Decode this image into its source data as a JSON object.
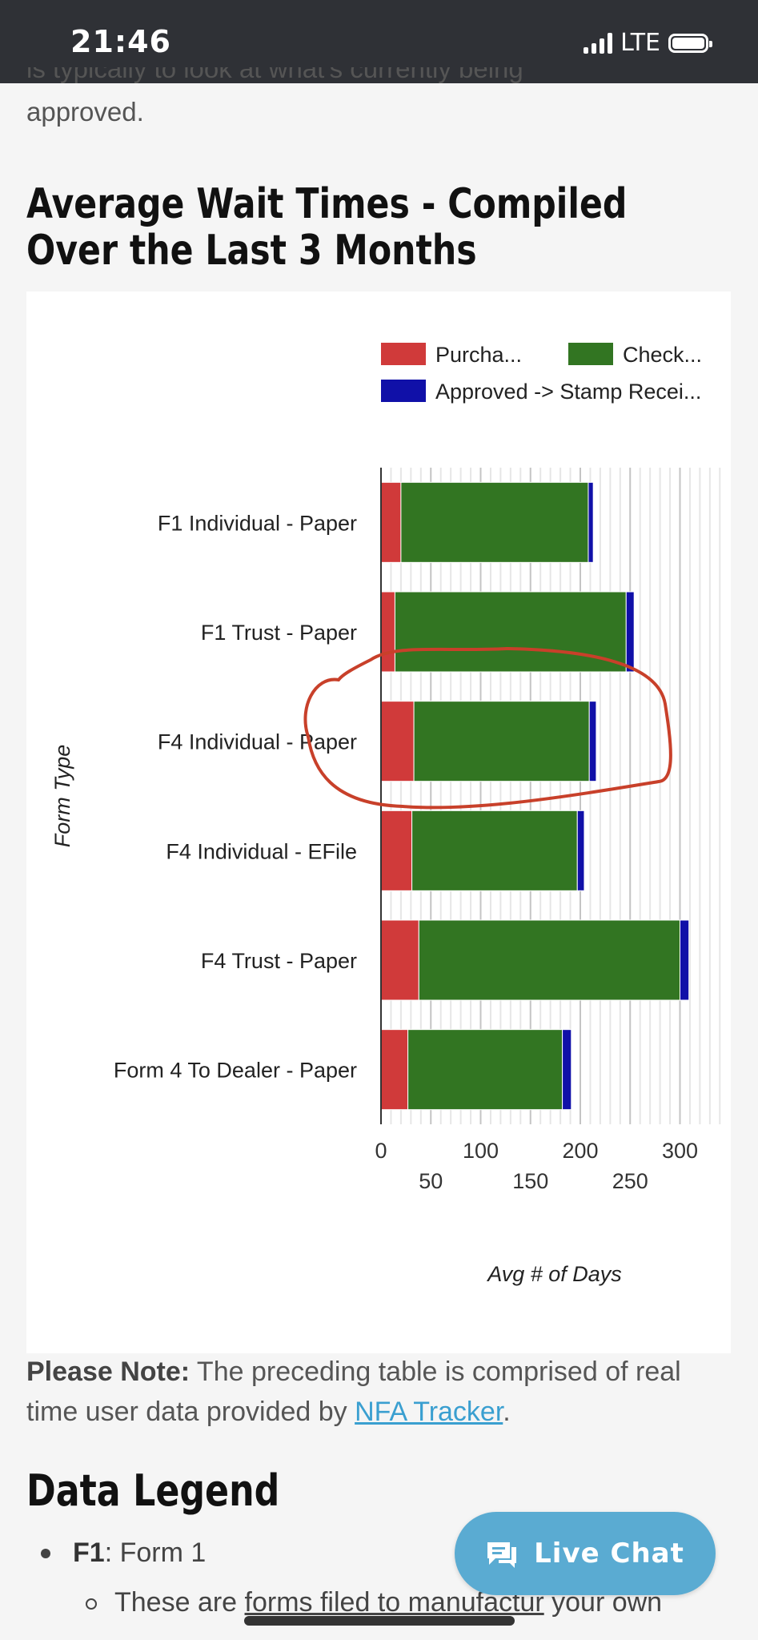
{
  "status_bar": {
    "time": "21:46",
    "network": "LTE"
  },
  "intro": {
    "line1": "is typically to look at what's currently being",
    "line2": "approved."
  },
  "section_title": "Average Wait Times - Compiled Over the Last 3 Months",
  "chart_data": {
    "type": "bar",
    "orientation": "horizontal",
    "stacked": true,
    "categories": [
      "F1 Individual - Paper",
      "F1 Trust - Paper",
      "F4 Individual - Paper",
      "F4 Individual - EFile",
      "F4 Trust - Paper",
      "Form 4 To Dealer - Paper"
    ],
    "series": [
      {
        "name": "Purcha...",
        "color": "#d03a3a",
        "values": [
          20,
          14,
          33,
          31,
          38,
          27
        ]
      },
      {
        "name": "Check...",
        "color": "#327522",
        "values": [
          188,
          232,
          176,
          166,
          262,
          155
        ]
      },
      {
        "name": "Approved -> Stamp Recei...",
        "color": "#1010a8",
        "values": [
          5,
          8,
          7,
          7,
          9,
          9
        ]
      }
    ],
    "xlabel": "Avg # of Days",
    "ylabel": "Form Type",
    "xlim": [
      0,
      350
    ],
    "x_ticks": [
      0,
      50,
      100,
      150,
      200,
      250,
      300
    ],
    "grid": true,
    "legend_position": "top"
  },
  "annotation": {
    "type": "hand-drawn circle",
    "color": "#c8402a",
    "target_category": "F4 Individual - Paper"
  },
  "note": {
    "bold": "Please Note:",
    "text": " The preceding table is comprised of real time user data provided by ",
    "link": "NFA Tracker",
    "end": "."
  },
  "legend_section": {
    "title": "Data Legend",
    "items": [
      {
        "key": "F1",
        "value": ": Form 1"
      }
    ],
    "sub_prefix": "These are ",
    "sub_underlined": "forms filed to manufactur",
    "sub_suffix": " your own"
  },
  "live_chat": {
    "label": "Live Chat"
  }
}
